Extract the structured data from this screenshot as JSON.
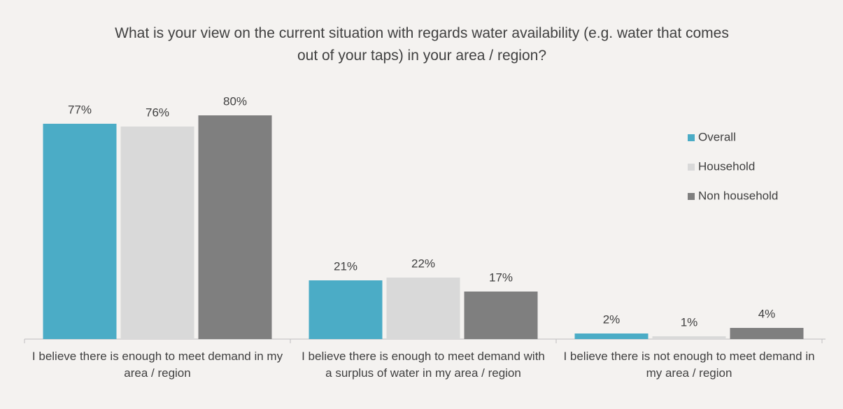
{
  "chart_data": {
    "type": "bar",
    "title": "What is your view on the current situation with regards water availability (e.g. water that comes out of your taps) in your area / region?",
    "categories": [
      "I believe there is enough to meet demand in my area / region",
      "I believe there is enough to meet demand with a surplus of water in my area / region",
      "I believe there is not enough to meet demand in my area / region"
    ],
    "series": [
      {
        "name": "Overall",
        "color": "#4bacc6",
        "values": [
          77,
          21,
          2
        ],
        "value_labels": [
          "77%",
          "21%",
          "2%"
        ]
      },
      {
        "name": "Household",
        "color": "#d9d9d9",
        "values": [
          76,
          22,
          1
        ],
        "value_labels": [
          "76%",
          "22%",
          "1%"
        ]
      },
      {
        "name": "Non household",
        "color": "#7f7f7f",
        "values": [
          80,
          17,
          4
        ],
        "value_labels": [
          "80%",
          "17%",
          "4%"
        ]
      }
    ],
    "legend": "right"
  }
}
